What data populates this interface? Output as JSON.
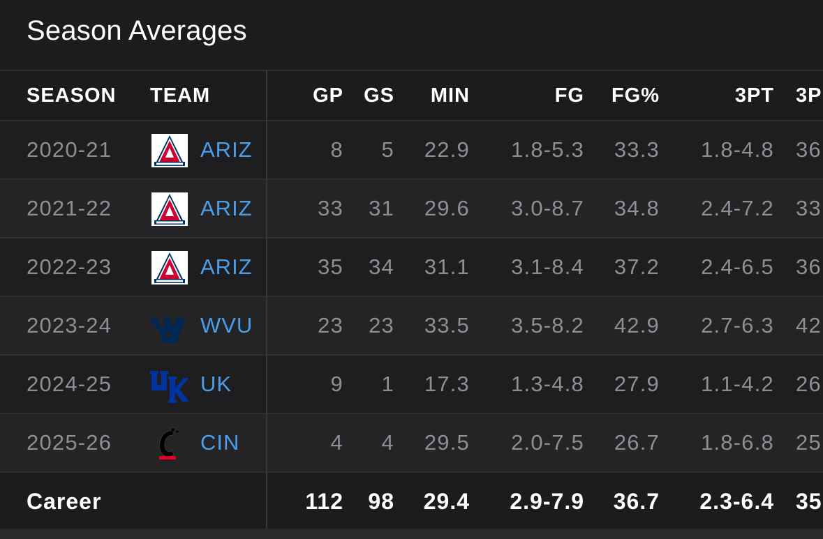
{
  "title": "Season Averages",
  "headers": {
    "season": "SEASON",
    "team": "TEAM",
    "gp": "GP",
    "gs": "GS",
    "min": "MIN",
    "fg": "FG",
    "fgp": "FG%",
    "threept": "3PT",
    "threeptp": "3P"
  },
  "rows": [
    {
      "season": "2020-21",
      "team": "ARIZ",
      "logo": "arizona-logo",
      "gp": "8",
      "gs": "5",
      "min": "22.9",
      "fg": "1.8-5.3",
      "fgp": "33.3",
      "threept": "1.8-4.8",
      "threeptp": "36"
    },
    {
      "season": "2021-22",
      "team": "ARIZ",
      "logo": "arizona-logo",
      "gp": "33",
      "gs": "31",
      "min": "29.6",
      "fg": "3.0-8.7",
      "fgp": "34.8",
      "threept": "2.4-7.2",
      "threeptp": "33"
    },
    {
      "season": "2022-23",
      "team": "ARIZ",
      "logo": "arizona-logo",
      "gp": "35",
      "gs": "34",
      "min": "31.1",
      "fg": "3.1-8.4",
      "fgp": "37.2",
      "threept": "2.4-6.5",
      "threeptp": "36"
    },
    {
      "season": "2023-24",
      "team": "WVU",
      "logo": "west-virginia-logo",
      "gp": "23",
      "gs": "23",
      "min": "33.5",
      "fg": "3.5-8.2",
      "fgp": "42.9",
      "threept": "2.7-6.3",
      "threeptp": "42"
    },
    {
      "season": "2024-25",
      "team": "UK",
      "logo": "kentucky-logo",
      "gp": "9",
      "gs": "1",
      "min": "17.3",
      "fg": "1.3-4.8",
      "fgp": "27.9",
      "threept": "1.1-4.2",
      "threeptp": "26"
    },
    {
      "season": "2025-26",
      "team": "CIN",
      "logo": "cincinnati-logo",
      "gp": "4",
      "gs": "4",
      "min": "29.5",
      "fg": "2.0-7.5",
      "fgp": "26.7",
      "threept": "1.8-6.8",
      "threeptp": "25"
    }
  ],
  "career": {
    "label": "Career",
    "gp": "112",
    "gs": "98",
    "min": "29.4",
    "fg": "2.9-7.9",
    "fgp": "36.7",
    "threept": "2.3-6.4",
    "threeptp": "35"
  },
  "colors": {
    "background": "#1c1c1e",
    "team_link": "#4a9eea",
    "arizona_red": "#cc0033",
    "arizona_navy": "#003366",
    "wvu_blue": "#002855",
    "uk_blue": "#0033a0",
    "cin_red": "#e00122"
  }
}
